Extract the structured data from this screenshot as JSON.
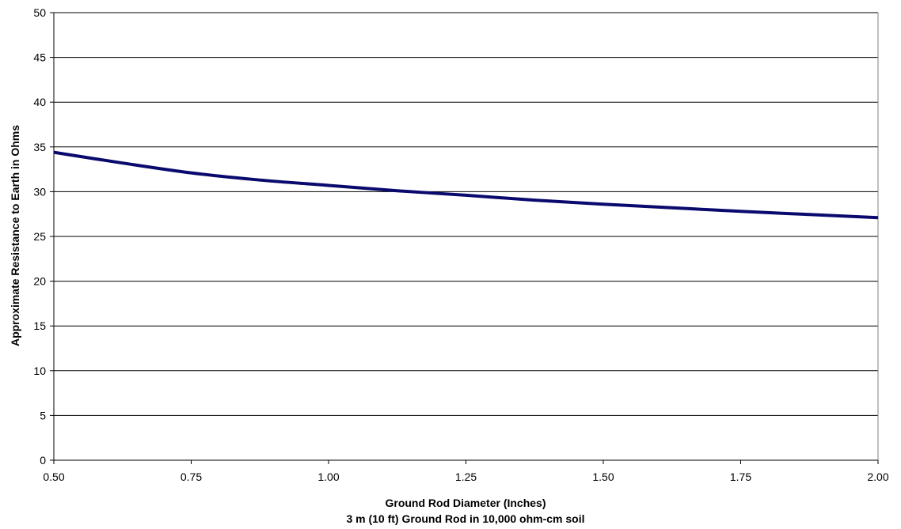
{
  "chart_data": {
    "type": "line",
    "title": "",
    "xlabel": "Ground Rod Diameter (Inches)",
    "xlabel_line2": "3 m (10 ft) Ground Rod in 10,000 ohm-cm soil",
    "ylabel": "Approximate Resistance to Earth in Ohms",
    "xlim": [
      0.5,
      2.0
    ],
    "ylim": [
      0,
      50
    ],
    "x_ticks": [
      "0.50",
      "0.75",
      "1.00",
      "1.25",
      "1.50",
      "1.75",
      "2.00"
    ],
    "y_ticks": [
      "0",
      "5",
      "10",
      "15",
      "20",
      "25",
      "30",
      "35",
      "40",
      "45",
      "50"
    ],
    "grid": true,
    "legend": "none",
    "series": [
      {
        "color": "#0a0a6e",
        "x": [
          0.5,
          0.625,
          0.75,
          0.875,
          1.0,
          1.125,
          1.25,
          1.375,
          1.5,
          1.625,
          1.75,
          1.875,
          2.0
        ],
        "y": [
          34.4,
          33.2,
          32.1,
          31.3,
          30.7,
          30.1,
          29.6,
          29.05,
          28.6,
          28.2,
          27.8,
          27.45,
          27.1
        ]
      }
    ]
  }
}
